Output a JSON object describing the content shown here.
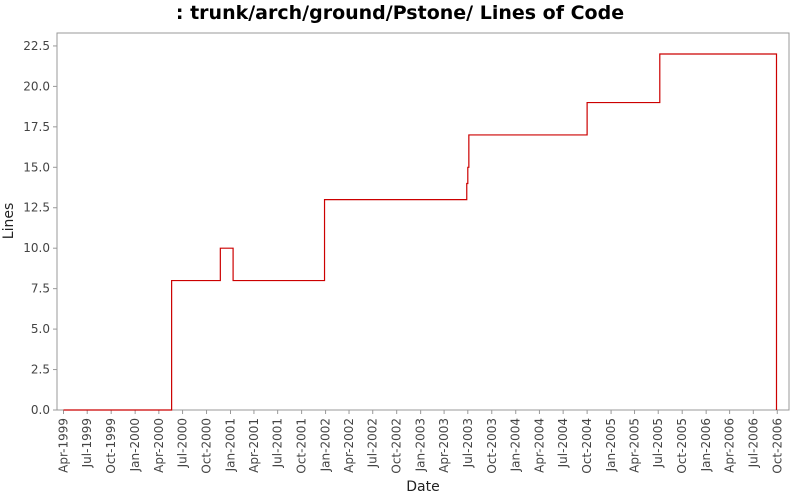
{
  "chart_data": {
    "type": "line",
    "title": ": trunk/arch/ground/Pstone/ Lines of Code",
    "xlabel": "Date",
    "ylabel": "Lines",
    "ylim": [
      0,
      23.3
    ],
    "xlim": [
      "1999-03-07",
      "2006-11-15"
    ],
    "y_ticks": [
      "0.0",
      "2.5",
      "5.0",
      "7.5",
      "10.0",
      "12.5",
      "15.0",
      "17.5",
      "20.0",
      "22.5"
    ],
    "x_ticks": [
      {
        "label": "Apr-1999",
        "date": "1999-04-01"
      },
      {
        "label": "Jul-1999",
        "date": "1999-07-01"
      },
      {
        "label": "Oct-1999",
        "date": "1999-10-01"
      },
      {
        "label": "Jan-2000",
        "date": "2000-01-01"
      },
      {
        "label": "Apr-2000",
        "date": "2000-04-01"
      },
      {
        "label": "Jul-2000",
        "date": "2000-07-01"
      },
      {
        "label": "Oct-2000",
        "date": "2000-10-01"
      },
      {
        "label": "Jan-2001",
        "date": "2001-01-01"
      },
      {
        "label": "Apr-2001",
        "date": "2001-04-01"
      },
      {
        "label": "Jul-2001",
        "date": "2001-07-01"
      },
      {
        "label": "Oct-2001",
        "date": "2001-10-01"
      },
      {
        "label": "Jan-2002",
        "date": "2002-01-01"
      },
      {
        "label": "Apr-2002",
        "date": "2002-04-01"
      },
      {
        "label": "Jul-2002",
        "date": "2002-07-01"
      },
      {
        "label": "Oct-2002",
        "date": "2002-10-01"
      },
      {
        "label": "Jan-2003",
        "date": "2003-01-01"
      },
      {
        "label": "Apr-2003",
        "date": "2003-04-01"
      },
      {
        "label": "Jul-2003",
        "date": "2003-07-01"
      },
      {
        "label": "Oct-2003",
        "date": "2003-10-01"
      },
      {
        "label": "Jan-2004",
        "date": "2004-01-01"
      },
      {
        "label": "Apr-2004",
        "date": "2004-04-01"
      },
      {
        "label": "Jul-2004",
        "date": "2004-07-01"
      },
      {
        "label": "Oct-2004",
        "date": "2004-10-01"
      },
      {
        "label": "Jan-2005",
        "date": "2005-01-01"
      },
      {
        "label": "Apr-2005",
        "date": "2005-04-01"
      },
      {
        "label": "Jul-2005",
        "date": "2005-07-01"
      },
      {
        "label": "Oct-2005",
        "date": "2005-10-01"
      },
      {
        "label": "Jan-2006",
        "date": "2006-01-01"
      },
      {
        "label": "Apr-2006",
        "date": "2006-04-01"
      },
      {
        "label": "Jul-2006",
        "date": "2006-07-01"
      },
      {
        "label": "Oct-2006",
        "date": "2006-10-01"
      }
    ],
    "step": true,
    "grid": false,
    "legend": "none",
    "series": [
      {
        "color": "#cc0000",
        "points": [
          {
            "x": "1999-04-01",
            "y": 0
          },
          {
            "x": "2000-05-20",
            "y": 8
          },
          {
            "x": "2000-11-23",
            "y": 10
          },
          {
            "x": "2001-01-11",
            "y": 8
          },
          {
            "x": "2001-12-28",
            "y": 13
          },
          {
            "x": "2003-06-27",
            "y": 14
          },
          {
            "x": "2003-07-01",
            "y": 15
          },
          {
            "x": "2003-07-05",
            "y": 17
          },
          {
            "x": "2004-10-01",
            "y": 19
          },
          {
            "x": "2005-07-07",
            "y": 22
          },
          {
            "x": "2006-09-28",
            "y": 0
          }
        ]
      }
    ]
  }
}
